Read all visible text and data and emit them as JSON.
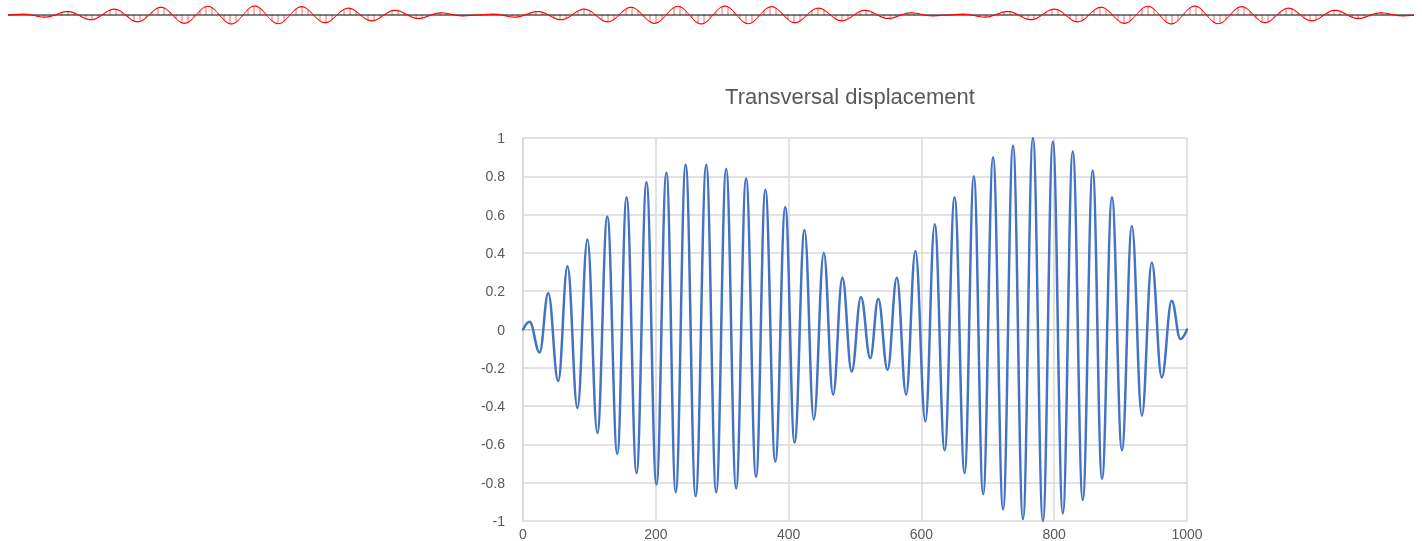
{
  "chart_data": {
    "type": "line",
    "title": "Transversal displacement",
    "x": [
      0,
      10,
      25,
      38,
      53,
      67,
      82,
      97,
      112,
      127,
      142,
      156,
      171,
      186,
      201,
      216,
      230,
      245,
      260,
      276,
      291,
      306,
      321,
      336,
      351,
      365,
      380,
      395,
      409,
      424,
      438,
      453,
      467,
      481,
      495,
      509,
      523,
      535,
      549,
      563,
      577,
      591,
      606,
      620,
      635,
      650,
      665,
      679,
      693,
      708,
      723,
      738,
      753,
      768,
      783,
      798,
      813,
      828,
      843,
      858,
      872,
      887,
      902,
      917,
      932,
      947,
      962,
      977,
      990,
      1000
    ],
    "series": [
      {
        "color": "#4472c4",
        "values": [
          0,
          0.04,
          -0.12,
          0.19,
          -0.27,
          0.33,
          -0.41,
          0.47,
          -0.54,
          0.59,
          -0.65,
          0.69,
          -0.75,
          0.77,
          -0.81,
          0.82,
          -0.85,
          0.86,
          -0.87,
          0.86,
          -0.85,
          0.84,
          -0.83,
          0.79,
          -0.77,
          0.73,
          -0.69,
          0.64,
          -0.59,
          0.52,
          -0.47,
          0.4,
          -0.34,
          0.27,
          -0.22,
          0.17,
          -0.15,
          0.16,
          -0.21,
          0.27,
          -0.34,
          0.41,
          -0.48,
          0.55,
          -0.63,
          0.69,
          -0.75,
          0.8,
          -0.86,
          0.9,
          -0.94,
          0.96,
          -0.99,
          1,
          -1,
          0.98,
          -0.96,
          0.93,
          -0.89,
          0.83,
          -0.78,
          0.69,
          -0.63,
          0.54,
          -0.45,
          0.35,
          -0.25,
          0.15,
          -0.05,
          0
        ]
      }
    ],
    "xlim": [
      0,
      1000
    ],
    "xticks": [
      0,
      200,
      400,
      600,
      800,
      1000
    ],
    "ylim": [
      -1,
      1
    ],
    "yticks": [
      -1,
      -0.8,
      -0.6,
      -0.4,
      -0.2,
      0,
      0.2,
      0.4,
      0.6,
      0.8,
      1
    ],
    "grid": true,
    "marker": "none"
  }
}
